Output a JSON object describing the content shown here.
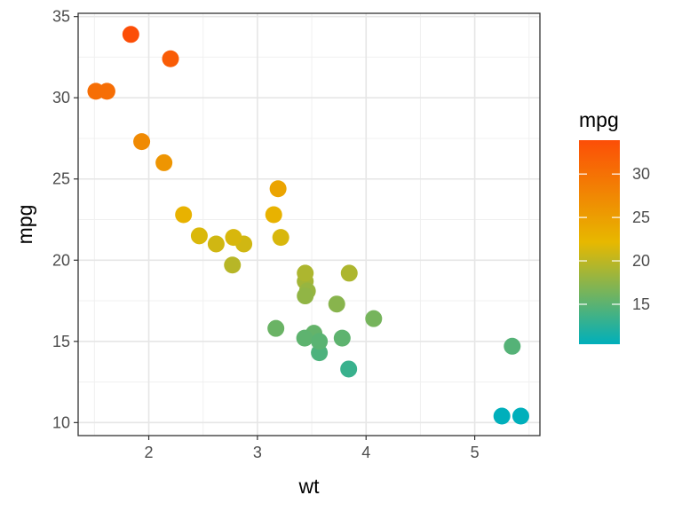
{
  "chart_data": {
    "type": "scatter",
    "xlabel": "wt",
    "ylabel": "mpg",
    "xlim": [
      1.35,
      5.6
    ],
    "ylim": [
      9.2,
      35.2
    ],
    "x_ticks": [
      2,
      3,
      4,
      5
    ],
    "y_ticks": [
      10,
      15,
      20,
      25,
      30,
      35
    ],
    "grid": true,
    "legend": {
      "title": "mpg",
      "placement": "right",
      "ticks": [
        15,
        20,
        25,
        30
      ],
      "range": [
        10.4,
        33.9
      ],
      "colors": [
        "#00AFBB",
        "#E7B800",
        "#FC4E07"
      ]
    },
    "points": [
      {
        "x": 2.62,
        "y": 21.0
      },
      {
        "x": 2.875,
        "y": 21.0
      },
      {
        "x": 2.32,
        "y": 22.8
      },
      {
        "x": 3.215,
        "y": 21.4
      },
      {
        "x": 3.44,
        "y": 18.7
      },
      {
        "x": 3.46,
        "y": 18.1
      },
      {
        "x": 3.57,
        "y": 14.3
      },
      {
        "x": 3.19,
        "y": 24.4
      },
      {
        "x": 3.15,
        "y": 22.8
      },
      {
        "x": 3.44,
        "y": 19.2
      },
      {
        "x": 3.44,
        "y": 17.8
      },
      {
        "x": 4.07,
        "y": 16.4
      },
      {
        "x": 3.73,
        "y": 17.3
      },
      {
        "x": 3.78,
        "y": 15.2
      },
      {
        "x": 5.25,
        "y": 10.4
      },
      {
        "x": 5.424,
        "y": 10.4
      },
      {
        "x": 5.345,
        "y": 14.7
      },
      {
        "x": 2.2,
        "y": 32.4
      },
      {
        "x": 1.615,
        "y": 30.4
      },
      {
        "x": 1.835,
        "y": 33.9
      },
      {
        "x": 2.465,
        "y": 21.5
      },
      {
        "x": 3.52,
        "y": 15.5
      },
      {
        "x": 3.435,
        "y": 15.2
      },
      {
        "x": 3.84,
        "y": 13.3
      },
      {
        "x": 3.845,
        "y": 19.2
      },
      {
        "x": 1.935,
        "y": 27.3
      },
      {
        "x": 2.14,
        "y": 26.0
      },
      {
        "x": 1.513,
        "y": 30.4
      },
      {
        "x": 3.17,
        "y": 15.8
      },
      {
        "x": 2.77,
        "y": 19.7
      },
      {
        "x": 3.57,
        "y": 15.0
      },
      {
        "x": 2.78,
        "y": 21.4
      }
    ]
  }
}
